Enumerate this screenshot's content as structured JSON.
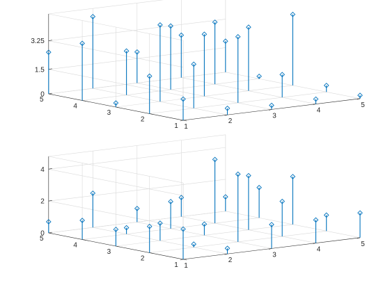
{
  "chart_data": [
    {
      "type": "stem3",
      "xlabel": "",
      "ylabel": "",
      "zlabel": "",
      "x_ticks": [
        "1",
        "2",
        "3",
        "4",
        "5"
      ],
      "y_ticks": [
        "1",
        "2",
        "3",
        "4",
        "5"
      ],
      "z_ticks": [
        "0",
        "1.5",
        "3.25"
      ],
      "z_tick_values": [
        0,
        1.5,
        3.25
      ],
      "zlim": [
        0,
        4.9
      ],
      "grid": true,
      "points": [
        {
          "x": 1,
          "y": 1,
          "z": 1.3
        },
        {
          "x": 1,
          "y": 2,
          "z": 2.3
        },
        {
          "x": 1,
          "y": 3,
          "z": 0.25
        },
        {
          "x": 1,
          "y": 4,
          "z": 3.5
        },
        {
          "x": 1,
          "y": 5,
          "z": 2.55
        },
        {
          "x": 2,
          "y": 1,
          "z": 0.4
        },
        {
          "x": 2,
          "y": 2,
          "z": 2.7
        },
        {
          "x": 2,
          "y": 3,
          "z": 4.7
        },
        {
          "x": 2,
          "y": 4,
          "z": 2.7
        },
        {
          "x": 2,
          "y": 5,
          "z": 4.4
        },
        {
          "x": 3,
          "y": 1,
          "z": 0.25
        },
        {
          "x": 3,
          "y": 2,
          "z": 4.05
        },
        {
          "x": 3,
          "y": 3,
          "z": 3.8
        },
        {
          "x": 3,
          "y": 4,
          "z": 3.9
        },
        {
          "x": 3,
          "y": 5,
          "z": 1.9
        },
        {
          "x": 4,
          "y": 1,
          "z": 0.3
        },
        {
          "x": 4,
          "y": 2,
          "z": 1.4
        },
        {
          "x": 4,
          "y": 3,
          "z": 3.9
        },
        {
          "x": 4,
          "y": 4,
          "z": 3.8
        },
        {
          "x": 4,
          "y": 5,
          "z": 2.6
        },
        {
          "x": 5,
          "y": 1,
          "z": 0.2
        },
        {
          "x": 5,
          "y": 2,
          "z": 0.4
        },
        {
          "x": 5,
          "y": 3,
          "z": 4.35
        },
        {
          "x": 5,
          "y": 4,
          "z": 0.15
        },
        {
          "x": 5,
          "y": 5,
          "z": 1.9
        }
      ]
    },
    {
      "type": "stem3",
      "xlabel": "",
      "ylabel": "",
      "zlabel": "",
      "x_ticks": [
        "1",
        "2",
        "3",
        "4",
        "5"
      ],
      "y_ticks": [
        "1",
        "2",
        "3",
        "4",
        "5"
      ],
      "z_ticks": [
        "0",
        "2",
        "4"
      ],
      "z_tick_values": [
        0,
        2,
        4
      ],
      "zlim": [
        0,
        4.8
      ],
      "grid": true,
      "points": [
        {
          "x": 1,
          "y": 1,
          "z": 1.9
        },
        {
          "x": 1,
          "y": 2,
          "z": 1.65
        },
        {
          "x": 1,
          "y": 3,
          "z": 1.05
        },
        {
          "x": 1,
          "y": 4,
          "z": 1.2
        },
        {
          "x": 1,
          "y": 5,
          "z": 0.7
        },
        {
          "x": 2,
          "y": 1,
          "z": 0.35
        },
        {
          "x": 2,
          "y": 2,
          "z": 0.2
        },
        {
          "x": 2,
          "y": 3,
          "z": 1.1
        },
        {
          "x": 2,
          "y": 4,
          "z": 0.4
        },
        {
          "x": 2,
          "y": 5,
          "z": 2.15
        },
        {
          "x": 3,
          "y": 1,
          "z": 1.5
        },
        {
          "x": 3,
          "y": 2,
          "z": 4.25
        },
        {
          "x": 3,
          "y": 3,
          "z": 0.7
        },
        {
          "x": 3,
          "y": 4,
          "z": 1.7
        },
        {
          "x": 3,
          "y": 5,
          "z": 0.85
        },
        {
          "x": 4,
          "y": 1,
          "z": 1.45
        },
        {
          "x": 4,
          "y": 2,
          "z": 2.2
        },
        {
          "x": 4,
          "y": 3,
          "z": 3.4
        },
        {
          "x": 4,
          "y": 4,
          "z": 4.0
        },
        {
          "x": 4,
          "y": 5,
          "z": 1.2
        },
        {
          "x": 5,
          "y": 1,
          "z": 1.55
        },
        {
          "x": 5,
          "y": 2,
          "z": 1.0
        },
        {
          "x": 5,
          "y": 3,
          "z": 3.0
        },
        {
          "x": 5,
          "y": 4,
          "z": 1.9
        },
        {
          "x": 5,
          "y": 5,
          "z": 0.9
        }
      ]
    }
  ],
  "colors": {
    "stem": "#0072bd",
    "axis": "#262626",
    "grid": "#d9d9d9",
    "background": "#ffffff"
  }
}
